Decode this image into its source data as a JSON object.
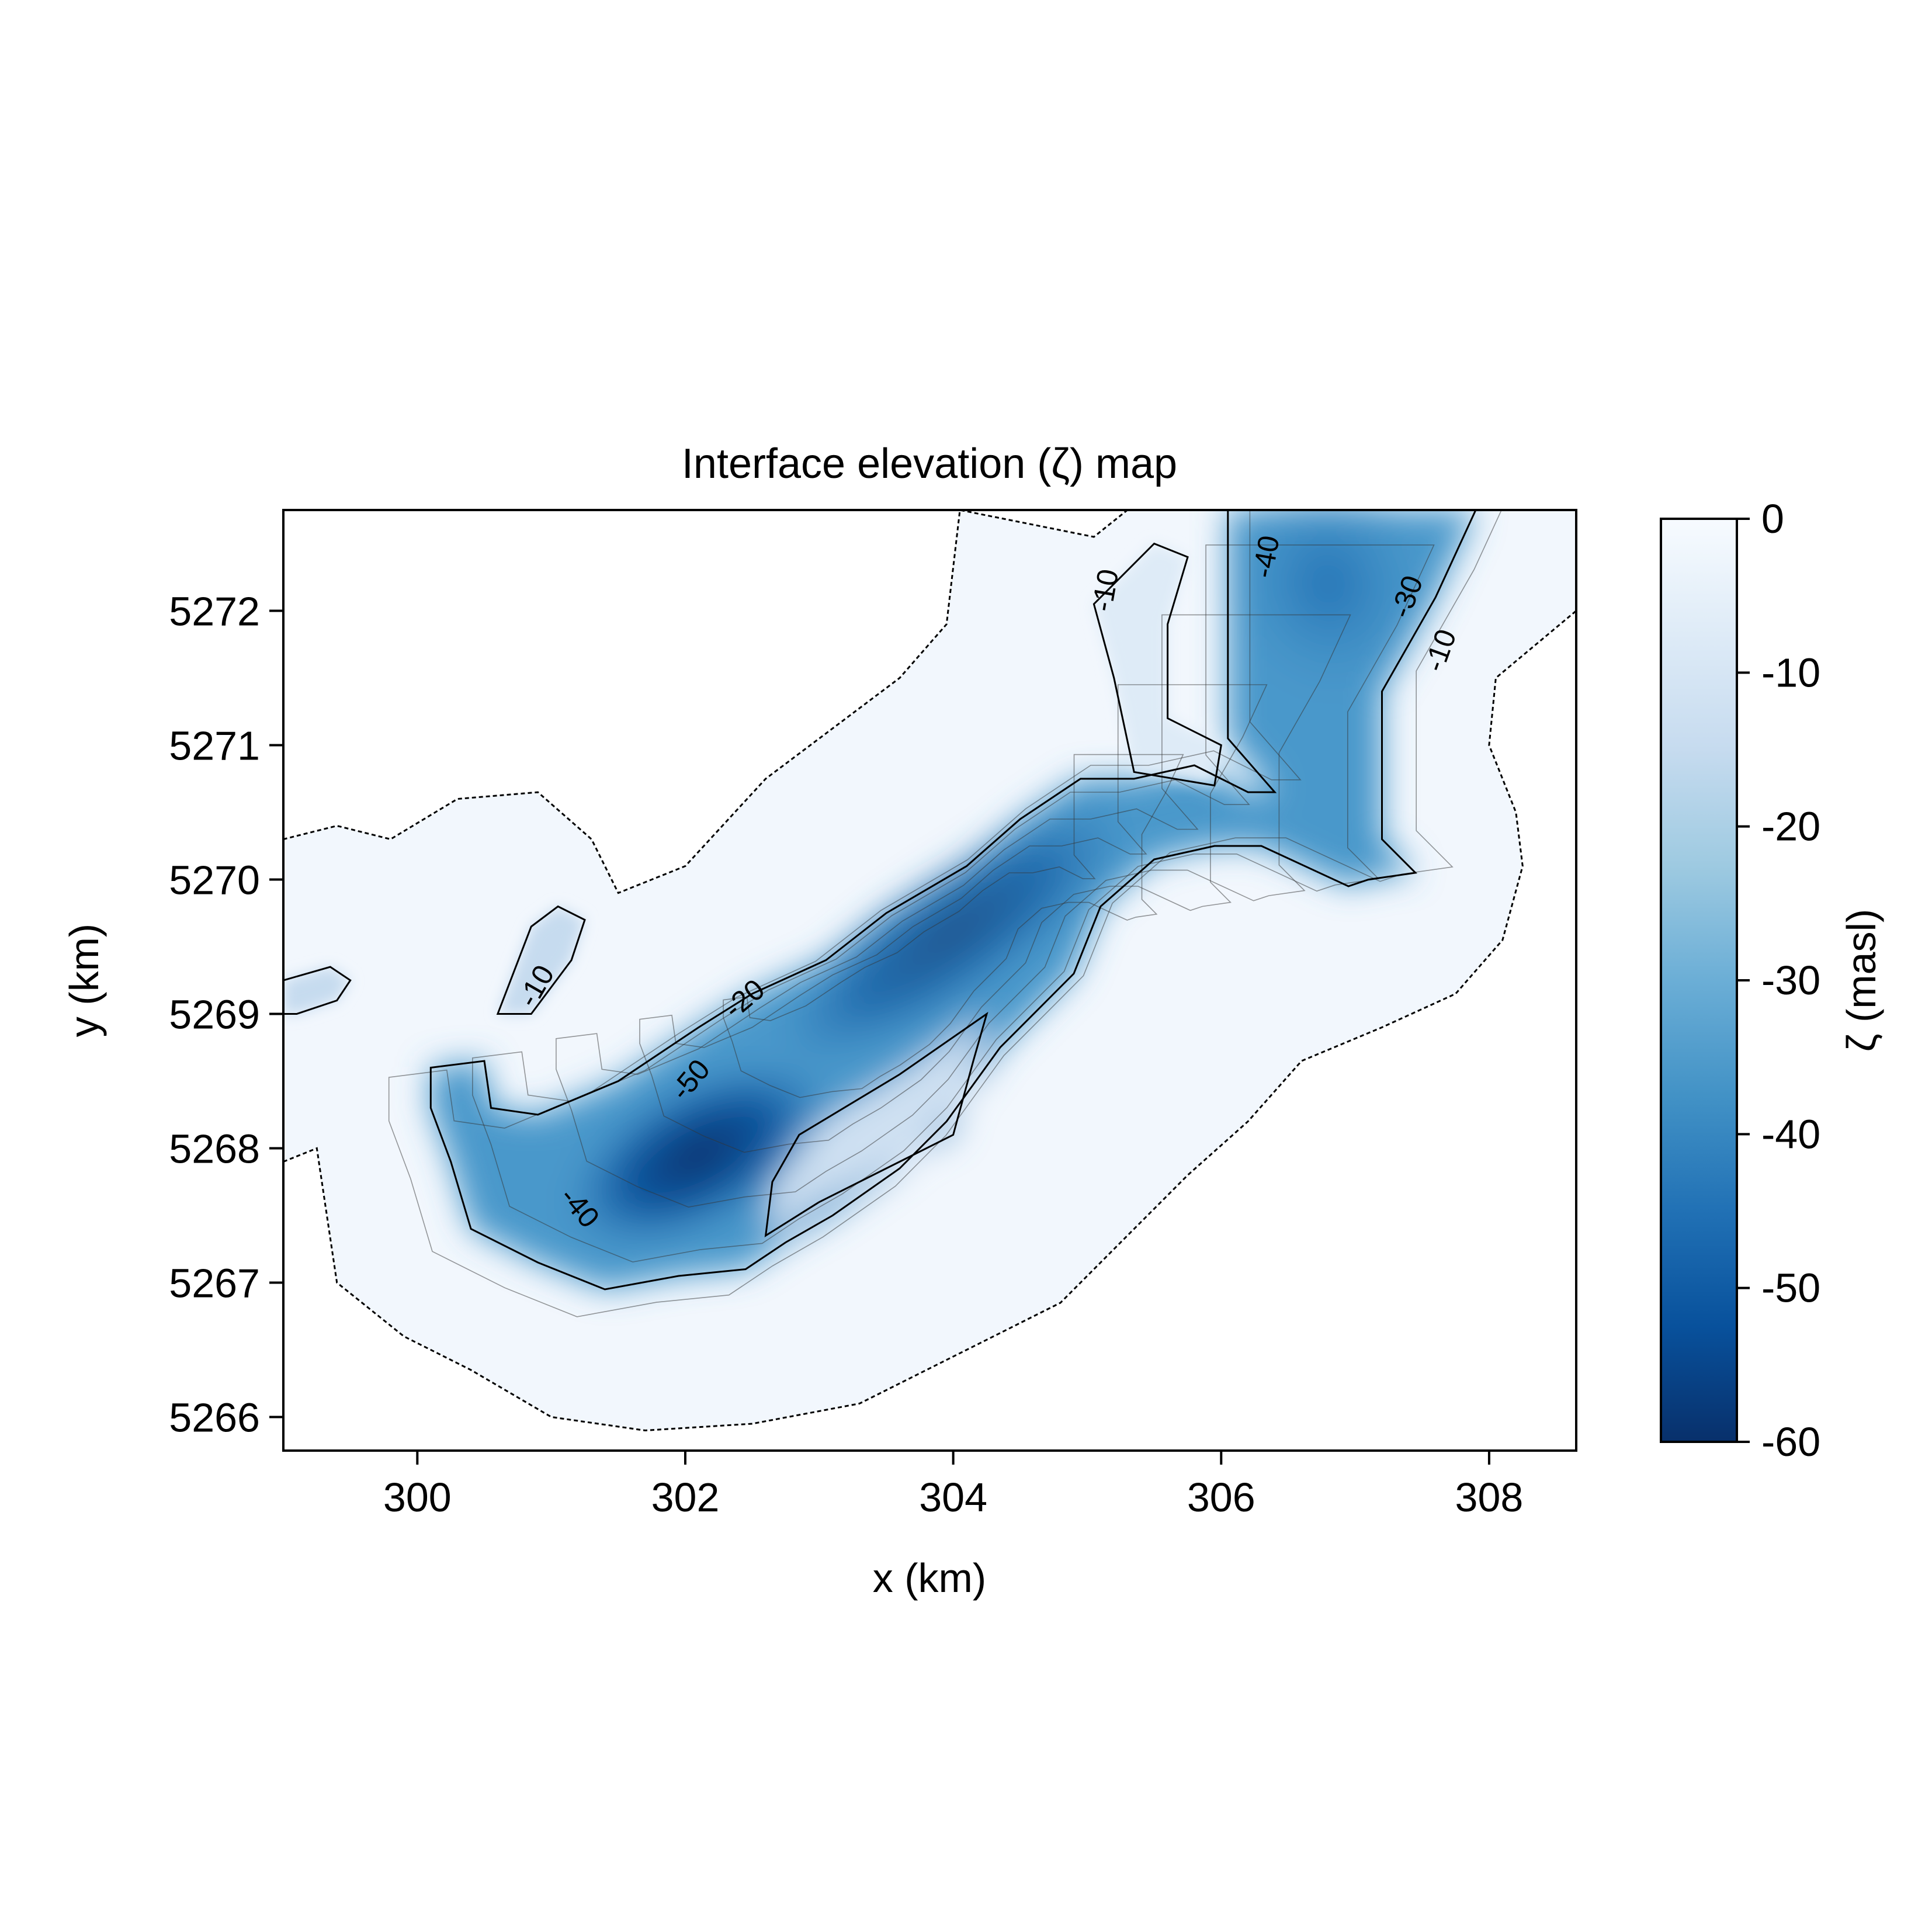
{
  "chart_data": {
    "type": "heatmap",
    "title": "Interface elevation (ζ) map",
    "xlabel": "x (km)",
    "ylabel": "y (km)",
    "xlim": [
      299,
      308.65
    ],
    "ylim": [
      5265.75,
      5272.75
    ],
    "x_ticks": [
      300,
      302,
      304,
      306,
      308
    ],
    "y_ticks": [
      5266,
      5267,
      5268,
      5269,
      5270,
      5271,
      5272
    ],
    "colorbar": {
      "label": "ζ (masl)",
      "colormap": "Blues (reversed: 0 white → -60 dark blue)",
      "range": [
        -60,
        0
      ],
      "ticks": [
        0,
        -10,
        -20,
        -30,
        -40,
        -50,
        -60
      ],
      "colors": [
        "#08306b",
        "#08519c",
        "#2171b5",
        "#4292c6",
        "#6baed6",
        "#9ecae1",
        "#c6dbef",
        "#deebf7",
        "#f7fbff"
      ]
    },
    "contour_levels": [
      -10,
      -20,
      -30,
      -40,
      -50
    ],
    "contour_labels": [
      {
        "text": "-10",
        "x": 305.15,
        "y": 5272.15,
        "angle": -80
      },
      {
        "text": "-40",
        "x": 306.35,
        "y": 5272.4,
        "angle": -80
      },
      {
        "text": "-30",
        "x": 307.4,
        "y": 5272.1,
        "angle": -70
      },
      {
        "text": "-10",
        "x": 307.65,
        "y": 5271.7,
        "angle": -70
      },
      {
        "text": "-10",
        "x": 300.9,
        "y": 5269.2,
        "angle": -60
      },
      {
        "text": "-20",
        "x": 302.45,
        "y": 5269.1,
        "angle": -40
      },
      {
        "text": "-50",
        "x": 302.05,
        "y": 5268.5,
        "angle": -50
      },
      {
        "text": "-40",
        "x": 301.2,
        "y": 5267.55,
        "angle": 50
      }
    ],
    "main_basin": {
      "outline": [
        [
          300.1,
          5268.6
        ],
        [
          300.5,
          5268.65
        ],
        [
          300.55,
          5268.3
        ],
        [
          300.9,
          5268.25
        ],
        [
          301.5,
          5268.5
        ],
        [
          302.1,
          5268.9
        ],
        [
          302.5,
          5269.15
        ],
        [
          303.05,
          5269.4
        ],
        [
          303.5,
          5269.75
        ],
        [
          304.1,
          5270.1
        ],
        [
          304.5,
          5270.45
        ],
        [
          304.95,
          5270.75
        ],
        [
          305.35,
          5270.75
        ],
        [
          305.8,
          5270.85
        ],
        [
          306.2,
          5270.65
        ],
        [
          306.4,
          5270.65
        ],
        [
          306.05,
          5271.05
        ],
        [
          306.05,
          5272.75
        ],
        [
          307.9,
          5272.75
        ],
        [
          307.6,
          5272.1
        ],
        [
          307.2,
          5271.4
        ],
        [
          307.2,
          5270.3
        ],
        [
          307.45,
          5270.05
        ],
        [
          307.1,
          5270.0
        ],
        [
          306.95,
          5269.95
        ],
        [
          306.3,
          5270.25
        ],
        [
          305.95,
          5270.25
        ],
        [
          305.5,
          5270.15
        ],
        [
          305.1,
          5269.8
        ],
        [
          304.9,
          5269.3
        ],
        [
          304.7,
          5269.1
        ],
        [
          304.35,
          5268.75
        ],
        [
          303.95,
          5268.2
        ],
        [
          303.6,
          5267.85
        ],
        [
          303.1,
          5267.5
        ],
        [
          302.75,
          5267.3
        ],
        [
          302.45,
          5267.1
        ],
        [
          301.95,
          5267.05
        ],
        [
          301.4,
          5266.95
        ],
        [
          300.9,
          5267.15
        ],
        [
          300.4,
          5267.4
        ],
        [
          300.25,
          5267.9
        ],
        [
          300.1,
          5268.3
        ]
      ],
      "hole": [
        [
          302.6,
          5267.35
        ],
        [
          303.0,
          5267.6
        ],
        [
          303.6,
          5267.9
        ],
        [
          304.0,
          5268.1
        ],
        [
          304.15,
          5268.65
        ],
        [
          304.25,
          5269.0
        ],
        [
          303.6,
          5268.55
        ],
        [
          302.85,
          5268.1
        ],
        [
          302.65,
          5267.75
        ]
      ]
    },
    "inner_channel": [
      [
        305.35,
        5270.8
      ],
      [
        305.2,
        5271.5
      ],
      [
        305.05,
        5272.05
      ],
      [
        305.5,
        5272.5
      ],
      [
        305.75,
        5272.4
      ],
      [
        305.6,
        5271.9
      ],
      [
        305.6,
        5271.2
      ],
      [
        306.0,
        5271.0
      ],
      [
        305.95,
        5270.7
      ]
    ],
    "small_lens_west": [
      [
        300.6,
        5269.0
      ],
      [
        300.85,
        5269.65
      ],
      [
        301.05,
        5269.8
      ],
      [
        301.25,
        5269.7
      ],
      [
        301.15,
        5269.4
      ],
      [
        300.85,
        5269.0
      ]
    ],
    "small_lens_edge": [
      [
        299.0,
        5269.0
      ],
      [
        299.0,
        5269.25
      ],
      [
        299.35,
        5269.35
      ],
      [
        299.5,
        5269.25
      ],
      [
        299.4,
        5269.1
      ],
      [
        299.1,
        5269.0
      ]
    ],
    "buffer_outline": [
      [
        299.0,
        5267.9
      ],
      [
        299.25,
        5268.0
      ],
      [
        299.4,
        5267.0
      ],
      [
        299.9,
        5266.6
      ],
      [
        300.4,
        5266.35
      ],
      [
        301.0,
        5266.0
      ],
      [
        301.7,
        5265.9
      ],
      [
        302.5,
        5265.95
      ],
      [
        303.3,
        5266.1
      ],
      [
        304.1,
        5266.5
      ],
      [
        304.8,
        5266.85
      ],
      [
        305.3,
        5267.35
      ],
      [
        305.75,
        5267.8
      ],
      [
        306.2,
        5268.2
      ],
      [
        306.6,
        5268.65
      ],
      [
        307.2,
        5268.9
      ],
      [
        307.75,
        5269.15
      ],
      [
        308.1,
        5269.55
      ],
      [
        308.25,
        5270.1
      ],
      [
        308.2,
        5270.5
      ],
      [
        308.0,
        5271.0
      ],
      [
        308.05,
        5271.5
      ],
      [
        308.35,
        5271.75
      ],
      [
        308.65,
        5272.0
      ],
      [
        308.65,
        5272.75
      ],
      [
        306.0,
        5272.75
      ],
      [
        305.3,
        5272.75
      ],
      [
        305.05,
        5272.55
      ],
      [
        304.05,
        5272.75
      ],
      [
        303.95,
        5271.9
      ],
      [
        303.6,
        5271.5
      ],
      [
        303.2,
        5271.2
      ],
      [
        302.6,
        5270.75
      ],
      [
        302.0,
        5270.1
      ],
      [
        301.5,
        5269.9
      ],
      [
        301.3,
        5270.3
      ],
      [
        300.9,
        5270.65
      ],
      [
        300.3,
        5270.6
      ],
      [
        299.8,
        5270.3
      ],
      [
        299.4,
        5270.4
      ],
      [
        299.0,
        5270.3
      ]
    ]
  }
}
